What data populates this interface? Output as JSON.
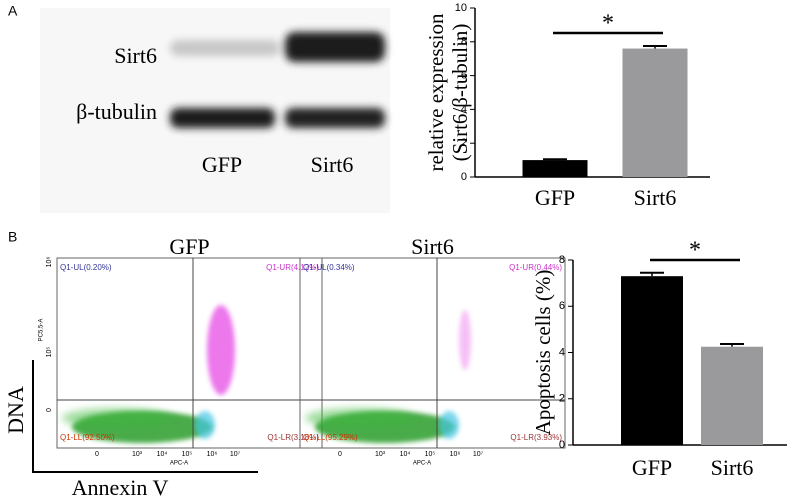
{
  "panel_labels": [
    "A",
    "B"
  ],
  "western_blot": {
    "rows": [
      "Sirt6",
      "β-tubulin"
    ],
    "lanes": [
      "GFP",
      "Sirt6"
    ]
  },
  "flow": {
    "y_label": "DNA",
    "x_label": "Annexin V",
    "x_channel": "APC-A",
    "y_channel": "PC5.5-A",
    "x_ticks": [
      "0",
      "10³",
      "10⁴",
      "10⁵",
      "10⁶",
      "10⁷"
    ],
    "y_ticks": [
      "0",
      "10⁵",
      "10⁶"
    ],
    "plots": [
      {
        "title": "GFP",
        "quadrants": [
          "Q1-UL(0.20%)",
          "Q1-UR(4.12%)",
          "Q1-LL(92.50%)",
          "Q1-LR(3.18%)"
        ]
      },
      {
        "title": "Sirt6",
        "quadrants": [
          "Q1-UL(0.34%)",
          "Q1-UR(0.44%)",
          "Q1-LL(95.29%)",
          "Q1-LR(3.93%)"
        ]
      }
    ]
  },
  "chart_data": [
    {
      "type": "bar",
      "ylabel": [
        "relative expression",
        "(Sirt6/β-tubulin)"
      ],
      "categories": [
        "GFP",
        "Sirt6"
      ],
      "values": [
        1.0,
        7.6
      ],
      "errors": [
        0.05,
        0.15
      ],
      "colors": [
        "#000000",
        "#9a9a9c"
      ],
      "ylim": [
        0,
        10
      ],
      "yticks": [
        0,
        2,
        4,
        6,
        8,
        10
      ],
      "annotation": "*"
    },
    {
      "type": "bar",
      "ylabel": [
        "Apoptosis cells (%)"
      ],
      "categories": [
        "GFP",
        "Sirt6"
      ],
      "values": [
        7.3,
        4.25
      ],
      "errors": [
        0.15,
        0.12
      ],
      "colors": [
        "#000000",
        "#9a9a9c"
      ],
      "ylim": [
        0,
        8
      ],
      "yticks": [
        0,
        2,
        4,
        6,
        8
      ],
      "annotation": "*"
    }
  ]
}
